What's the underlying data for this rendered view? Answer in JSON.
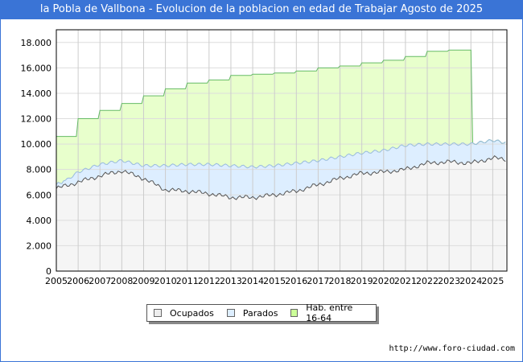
{
  "title": "la Pobla de Vallbona - Evolucion de la poblacion en edad de Trabajar Agosto de 2025",
  "url": "http://www.foro-ciudad.com",
  "chart_data": {
    "type": "area",
    "title": "la Pobla de Vallbona - Evolucion de la poblacion en edad de Trabajar Agosto de 2025",
    "x": [
      2005,
      2006,
      2007,
      2008,
      2009,
      2010,
      2011,
      2012,
      2013,
      2014,
      2015,
      2016,
      2017,
      2018,
      2019,
      2020,
      2021,
      2022,
      2023,
      2024,
      2025,
      2025.6
    ],
    "series": [
      {
        "name": "Ocupados",
        "color": "#f5f5f5",
        "stroke": "#555555",
        "values": [
          6500,
          7000,
          7500,
          7900,
          7300,
          6400,
          6300,
          6100,
          5800,
          5800,
          6000,
          6300,
          6800,
          7300,
          7700,
          7800,
          8000,
          8500,
          8600,
          8500,
          8900,
          8800
        ]
      },
      {
        "name": "Parados",
        "color": "#ddeeff",
        "stroke": "#99bbdd",
        "values_total": [
          6600,
          7800,
          8400,
          8700,
          8300,
          8300,
          8400,
          8400,
          8300,
          8200,
          8300,
          8500,
          8700,
          9000,
          9300,
          9500,
          9900,
          10000,
          10000,
          10000,
          10300,
          10100
        ]
      },
      {
        "name": "Hab. entre 16-64",
        "color": "#e8ffcc",
        "stroke": "#66bb66",
        "values": [
          10600,
          12000,
          12650,
          13200,
          13800,
          14350,
          14800,
          15050,
          15400,
          15500,
          15600,
          15750,
          16000,
          16150,
          16400,
          16600,
          16900,
          17300,
          17400,
          10000,
          10300,
          10100
        ]
      }
    ],
    "yticks": [
      "0",
      "2.000",
      "4.000",
      "6.000",
      "8.000",
      "10.000",
      "12.000",
      "14.000",
      "16.000",
      "18.000"
    ],
    "xticks": [
      "2005",
      "2006",
      "2007",
      "2008",
      "2009",
      "2010",
      "2011",
      "2012",
      "2013",
      "2014",
      "2015",
      "2016",
      "2017",
      "2018",
      "2019",
      "2020",
      "2021",
      "2022",
      "2023",
      "2024",
      "2025"
    ],
    "ylim": [
      0,
      19000
    ],
    "xlim": [
      2005,
      2025.65
    ],
    "grid": true,
    "legend": "bottom"
  }
}
